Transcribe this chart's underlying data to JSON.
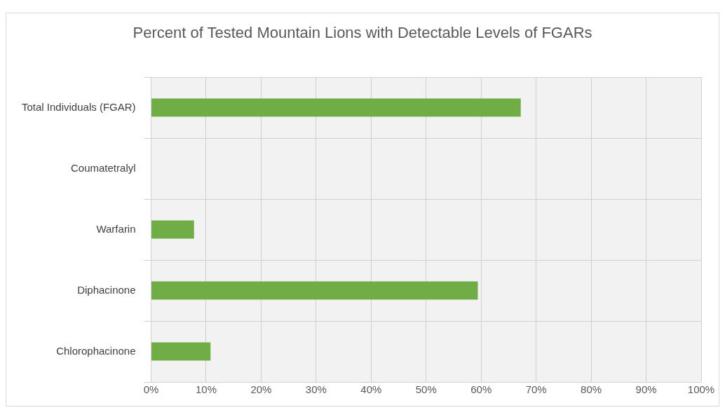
{
  "chart_data": {
    "type": "bar",
    "orientation": "horizontal",
    "title": "Percent of Tested Mountain Lions with Detectable Levels of FGARs",
    "categories": [
      "Total Individuals (FGAR)",
      "Coumatetralyl",
      "Warfarin",
      "Diphacinone",
      "Chlorophacinone"
    ],
    "values": [
      67.2,
      0,
      7.8,
      59.4,
      10.8
    ],
    "color": "#70ad47",
    "xlim": [
      0,
      100
    ],
    "xticks": [
      {
        "value": 0,
        "label": "0%"
      },
      {
        "value": 10,
        "label": "10%"
      },
      {
        "value": 20,
        "label": "20%"
      },
      {
        "value": 30,
        "label": "30%"
      },
      {
        "value": 40,
        "label": "40%"
      },
      {
        "value": 50,
        "label": "50%"
      },
      {
        "value": 60,
        "label": "60%"
      },
      {
        "value": 70,
        "label": "70%"
      },
      {
        "value": 80,
        "label": "80%"
      },
      {
        "value": 90,
        "label": "90%"
      },
      {
        "value": 100,
        "label": "100%"
      }
    ],
    "grid": true,
    "legend": false
  }
}
